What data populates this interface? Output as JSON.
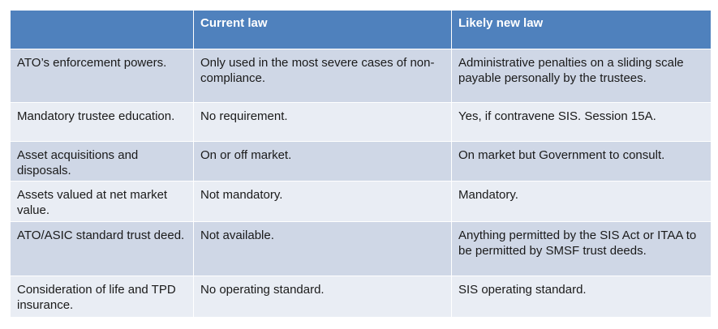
{
  "table": {
    "headers": [
      "",
      "Current law",
      "Likely new law"
    ],
    "rows": [
      [
        "ATO’s enforcement powers.",
        "Only used in the most severe cases of non-compliance.",
        "Administrative penalties on a sliding scale payable personally by the trustees."
      ],
      [
        "Mandatory trustee education.",
        "No requirement.",
        "Yes, if contravene SIS. Session 15A."
      ],
      [
        "Asset acquisitions and disposals.",
        "On or off market.",
        "On market but Government to consult."
      ],
      [
        "Assets valued at net market value.",
        "Not mandatory.",
        "Mandatory."
      ],
      [
        "ATO/ASIC standard trust deed.",
        "Not available.",
        "Anything permitted by the SIS Act or ITAA to be permitted by SMSF trust deeds."
      ],
      [
        "Consideration of life and TPD insurance.",
        "No operating standard.",
        "SIS operating standard."
      ]
    ]
  },
  "colors": {
    "header_bg": "#4f81bd",
    "row_odd_bg": "#cfd7e6",
    "row_even_bg": "#e9edf4"
  }
}
